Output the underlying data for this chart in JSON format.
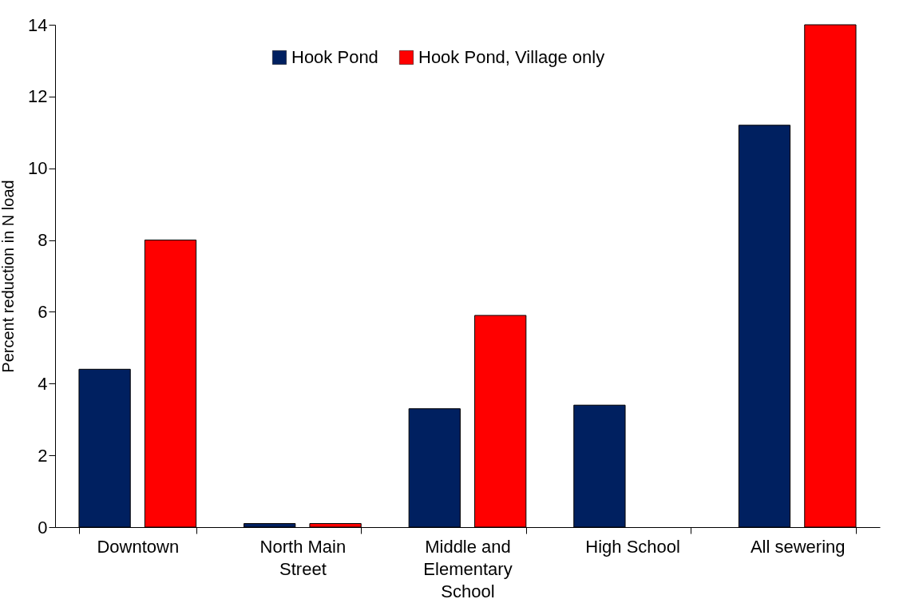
{
  "chart_data": {
    "type": "bar",
    "ylabel": "Percent reduction in N load",
    "categories": [
      "Downtown",
      "North Main Street",
      "Middle and Elementary School",
      "High School",
      "All sewering"
    ],
    "series": [
      {
        "name": "Hook Pond",
        "color": "#002060",
        "values": [
          4.4,
          0.1,
          3.3,
          3.4,
          11.2
        ]
      },
      {
        "name": "Hook Pond, Village only",
        "color": "#ff0000",
        "values": [
          8.0,
          0.1,
          5.9,
          null,
          14.0
        ]
      }
    ],
    "ylim": [
      0,
      14
    ],
    "yticks": [
      0,
      2,
      4,
      6,
      8,
      10,
      12,
      14
    ],
    "grid": false,
    "legend": "top"
  }
}
